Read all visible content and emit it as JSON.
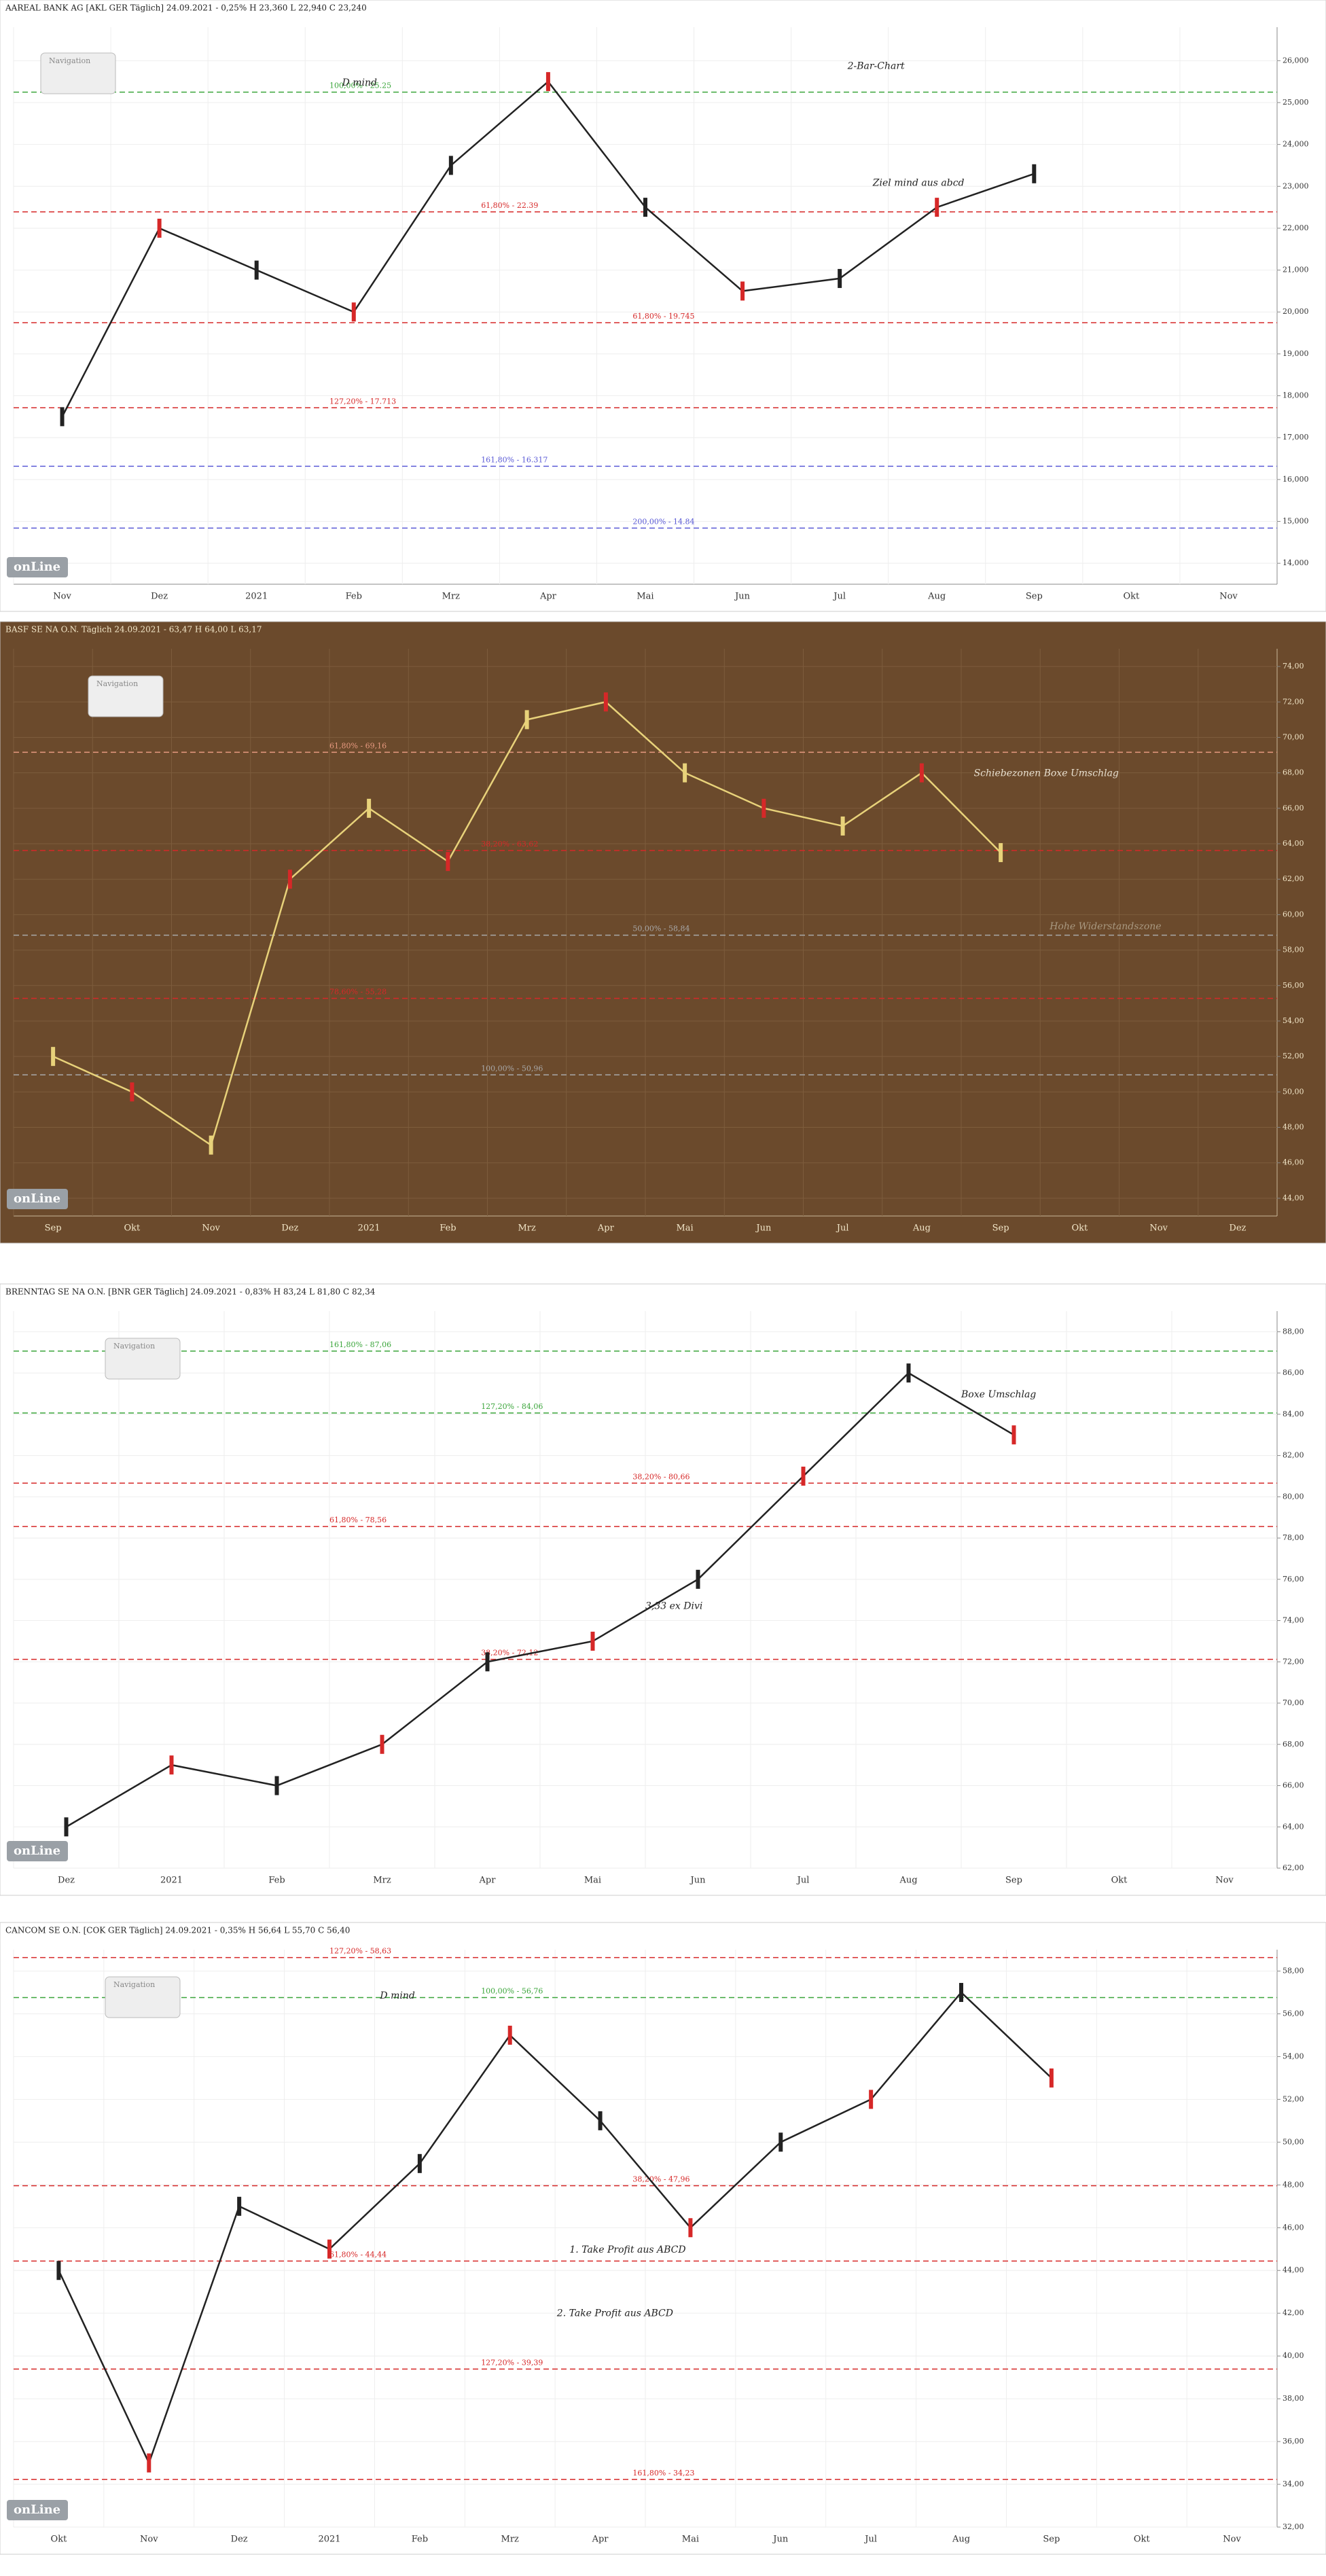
{
  "chart_data": [
    {
      "type": "line",
      "title": "AAREAL BANK AG [AKL GER Täglich] 24.09.2021 - 0,25% H 23,360 L 22,940 C 23,240",
      "background": "#ffffff",
      "color": "#222222",
      "grid": true,
      "navigation": "Navigation",
      "logo": "onLine",
      "categories": [
        "Nov",
        "Dez",
        "2021",
        "Feb",
        "Mrz",
        "Apr",
        "Mai",
        "Jun",
        "Jul",
        "Aug",
        "Sep",
        "Okt",
        "Nov"
      ],
      "values": [
        17.5,
        22,
        21,
        20,
        23.5,
        25.5,
        22.5,
        20.5,
        20.8,
        22.5,
        23.3,
        null,
        null
      ],
      "ylim": [
        13.5,
        26.8
      ],
      "yticks": [
        {
          "value": 14,
          "label": "14,000"
        },
        {
          "value": 15,
          "label": "15,000"
        },
        {
          "value": 16,
          "label": "16,000"
        },
        {
          "value": 17,
          "label": "17,000"
        },
        {
          "value": 18,
          "label": "18,000"
        },
        {
          "value": 19,
          "label": "19,000"
        },
        {
          "value": 20,
          "label": "20,000"
        },
        {
          "value": 21,
          "label": "21,000"
        },
        {
          "value": 22,
          "label": "22,000"
        },
        {
          "value": 23,
          "label": "23,000"
        },
        {
          "value": 24,
          "label": "24,000"
        },
        {
          "value": 25,
          "label": "25,000"
        },
        {
          "value": 26,
          "label": "26,000"
        }
      ],
      "annotations": [
        {
          "text": "2-Bar-Chart",
          "color": "#222222"
        },
        {
          "text": "D mind",
          "color": "#222222"
        },
        {
          "text": "Ziel mind aus abcd",
          "color": "#222222"
        }
      ],
      "levels": [
        {
          "label": "100,00% - 25.25",
          "value": 25.25,
          "color": "#3aa53a"
        },
        {
          "label": "61,80% - 22.39",
          "value": 22.39,
          "color": "#d62828"
        },
        {
          "label": "61,80% - 19.745",
          "value": 19.745,
          "color": "#d62828"
        },
        {
          "label": "127,20% - 17.713",
          "value": 17.713,
          "color": "#d62828"
        },
        {
          "label": "161,80% - 16.317",
          "value": 16.317,
          "color": "#5a5ad6"
        },
        {
          "label": "200,00% - 14.84",
          "value": 14.84,
          "color": "#5a5ad6"
        }
      ]
    },
    {
      "type": "line",
      "title": "BASF SE NA O.N. Täglich 24.09.2021 - 63,47 H 64,00 L 63,17",
      "background": "#6b4a2c",
      "color": "#e8d27a",
      "grid": true,
      "navigation": "Navigation",
      "logo": "onLine",
      "categories": [
        "Sep",
        "Okt",
        "Nov",
        "Dez",
        "2021",
        "Feb",
        "Mrz",
        "Apr",
        "Mai",
        "Jun",
        "Jul",
        "Aug",
        "Sep",
        "Okt",
        "Nov",
        "Dez"
      ],
      "values": [
        52,
        50,
        47,
        62,
        66,
        63,
        71,
        72,
        68,
        66,
        65,
        68,
        63.5,
        null,
        null,
        null
      ],
      "ylim": [
        43,
        75
      ],
      "yticks": [
        {
          "value": 44,
          "label": "44,00"
        },
        {
          "value": 46,
          "label": "46,00"
        },
        {
          "value": 48,
          "label": "48,00"
        },
        {
          "value": 50,
          "label": "50,00"
        },
        {
          "value": 52,
          "label": "52,00"
        },
        {
          "value": 54,
          "label": "54,00"
        },
        {
          "value": 56,
          "label": "56,00"
        },
        {
          "value": 58,
          "label": "58,00"
        },
        {
          "value": 60,
          "label": "60,00"
        },
        {
          "value": 62,
          "label": "62,00"
        },
        {
          "value": 64,
          "label": "64,00"
        },
        {
          "value": 66,
          "label": "66,00"
        },
        {
          "value": 68,
          "label": "68,00"
        },
        {
          "value": 70,
          "label": "70,00"
        },
        {
          "value": 72,
          "label": "72,00"
        },
        {
          "value": 74,
          "label": "74,00"
        }
      ],
      "annotations": [
        {
          "text": "Schiebezonen Boxe Umschlag",
          "color": "#e8e0d0"
        },
        {
          "text": "Hohe Widerstandszone",
          "color": "#a89880"
        }
      ],
      "levels": [
        {
          "label": "61,80% - 69,16",
          "value": 69.16,
          "color": "#e89a80"
        },
        {
          "label": "38,20% - 63,62",
          "value": 63.62,
          "color": "#d62828"
        },
        {
          "label": "50,00% - 58,84",
          "value": 58.84,
          "color": "#a8a8a8"
        },
        {
          "label": "78,60% - 55,28",
          "value": 55.28,
          "color": "#d62828"
        },
        {
          "label": "100,00% - 50,96",
          "value": 50.96,
          "color": "#a8a8a8"
        }
      ]
    },
    {
      "type": "line",
      "title": "BRENNTAG SE NA O.N. [BNR GER Täglich] 24.09.2021 - 0,83% H 83,24 L 81,80 C 82,34",
      "background": "#ffffff",
      "color": "#222222",
      "grid": true,
      "navigation": "Navigation",
      "logo": "onLine",
      "categories": [
        "Dez",
        "2021",
        "Feb",
        "Mrz",
        "Apr",
        "Mai",
        "Jun",
        "Jul",
        "Aug",
        "Sep",
        "Okt",
        "Nov"
      ],
      "values": [
        64,
        67,
        66,
        68,
        72,
        73,
        76,
        81,
        86,
        83,
        null,
        null
      ],
      "ylim": [
        62,
        89
      ],
      "yticks": [
        {
          "value": 62,
          "label": "62,00"
        },
        {
          "value": 64,
          "label": "64,00"
        },
        {
          "value": 66,
          "label": "66,00"
        },
        {
          "value": 68,
          "label": "68,00"
        },
        {
          "value": 70,
          "label": "70,00"
        },
        {
          "value": 72,
          "label": "72,00"
        },
        {
          "value": 74,
          "label": "74,00"
        },
        {
          "value": 76,
          "label": "76,00"
        },
        {
          "value": 78,
          "label": "78,00"
        },
        {
          "value": 80,
          "label": "80,00"
        },
        {
          "value": 82,
          "label": "82,00"
        },
        {
          "value": 84,
          "label": "84,00"
        },
        {
          "value": 86,
          "label": "86,00"
        },
        {
          "value": 88,
          "label": "88,00"
        }
      ],
      "annotations": [
        {
          "text": "Boxe Umschlag",
          "color": "#222222"
        },
        {
          "text": "3,33 ex Divi",
          "color": "#222222"
        }
      ],
      "levels": [
        {
          "label": "161,80% - 87,06",
          "value": 87.06,
          "color": "#3aa53a"
        },
        {
          "label": "127,20% - 84,06",
          "value": 84.06,
          "color": "#3aa53a"
        },
        {
          "label": "38,20% - 80,66",
          "value": 80.66,
          "color": "#d62828"
        },
        {
          "label": "61,80% - 78,56",
          "value": 78.56,
          "color": "#d62828"
        },
        {
          "label": "38,20% - 72,12",
          "value": 72.12,
          "color": "#d62828"
        }
      ]
    },
    {
      "type": "line",
      "title": "CANCOM SE O.N. [COK GER Täglich] 24.09.2021 - 0,35% H 56,64 L 55,70 C 56,40",
      "background": "#ffffff",
      "color": "#222222",
      "grid": true,
      "navigation": "Navigation",
      "logo": "onLine",
      "categories": [
        "Okt",
        "Nov",
        "Dez",
        "2021",
        "Feb",
        "Mrz",
        "Apr",
        "Mai",
        "Jun",
        "Jul",
        "Aug",
        "Sep",
        "Okt",
        "Nov"
      ],
      "values": [
        44,
        35,
        47,
        45,
        49,
        55,
        51,
        46,
        50,
        52,
        57,
        53,
        null,
        null
      ],
      "ylim": [
        32,
        59
      ],
      "yticks": [
        {
          "value": 32,
          "label": "32,00"
        },
        {
          "value": 34,
          "label": "34,00"
        },
        {
          "value": 36,
          "label": "36,00"
        },
        {
          "value": 38,
          "label": "38,00"
        },
        {
          "value": 40,
          "label": "40,00"
        },
        {
          "value": 42,
          "label": "42,00"
        },
        {
          "value": 44,
          "label": "44,00"
        },
        {
          "value": 46,
          "label": "46,00"
        },
        {
          "value": 48,
          "label": "48,00"
        },
        {
          "value": 50,
          "label": "50,00"
        },
        {
          "value": 52,
          "label": "52,00"
        },
        {
          "value": 54,
          "label": "54,00"
        },
        {
          "value": 56,
          "label": "56,00"
        },
        {
          "value": 58,
          "label": "58,00"
        }
      ],
      "annotations": [
        {
          "text": "D mind",
          "color": "#222222"
        },
        {
          "text": "1. Take Profit aus ABCD",
          "color": "#222222"
        },
        {
          "text": "2. Take Profit aus ABCD",
          "color": "#222222"
        }
      ],
      "levels": [
        {
          "label": "127,20% - 58,63",
          "value": 58.63,
          "color": "#d62828"
        },
        {
          "label": "100,00% - 56,76",
          "value": 56.76,
          "color": "#3aa53a"
        },
        {
          "label": "38,20% - 47,96",
          "value": 47.96,
          "color": "#d62828"
        },
        {
          "label": "61,80% - 44,44",
          "value": 44.44,
          "color": "#d62828"
        },
        {
          "label": "127,20% - 39,39",
          "value": 39.39,
          "color": "#d62828"
        },
        {
          "label": "161,80% - 34,23",
          "value": 34.23,
          "color": "#d62828"
        }
      ]
    }
  ]
}
